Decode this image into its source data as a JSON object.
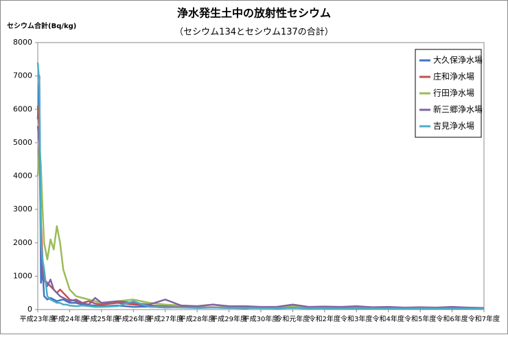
{
  "chart_data": {
    "type": "line",
    "title": "浄水発生土中の放射性セシウム",
    "subtitle": "（セシウム134とセシウム137の合計）",
    "y_label": "セシウム合計(Bq/kg)",
    "x": [
      0,
      0.05,
      0.1,
      0.15,
      0.2,
      0.3,
      0.4,
      0.5,
      0.6,
      0.7,
      0.8,
      0.9,
      1.0,
      1.2,
      1.4,
      1.6,
      1.8,
      2,
      2.5,
      3,
      3.5,
      4,
      4.5,
      5,
      5.5,
      6,
      6.5,
      7,
      7.5,
      8,
      8.5,
      9,
      9.5,
      10,
      10.5,
      11,
      11.5,
      12,
      12.5,
      13,
      13.5,
      14
    ],
    "xlim": [
      0,
      14
    ],
    "xticks": [
      {
        "value": 0,
        "label": "平成23年度"
      },
      {
        "value": 1,
        "label": "平成24年度"
      },
      {
        "value": 2,
        "label": "平成25年度"
      },
      {
        "value": 3,
        "label": "平成26年度"
      },
      {
        "value": 4,
        "label": "平成27年度"
      },
      {
        "value": 5,
        "label": "平成28年度"
      },
      {
        "value": 6,
        "label": "平成29年度"
      },
      {
        "value": 7,
        "label": "平成30年度"
      },
      {
        "value": 8,
        "label": "令和元年度"
      },
      {
        "value": 9,
        "label": "令和2年度"
      },
      {
        "value": 10,
        "label": "令和3年度"
      },
      {
        "value": 11,
        "label": "令和4年度"
      },
      {
        "value": 12,
        "label": "令和5年度"
      },
      {
        "value": 13,
        "label": "令和6年度"
      },
      {
        "value": 14,
        "label": "令和7年度"
      }
    ],
    "ylim": [
      0,
      8000
    ],
    "yticks": [
      0,
      1000,
      2000,
      3000,
      4000,
      5000,
      6000,
      7000,
      8000
    ],
    "legend": "top-right",
    "series": [
      {
        "name": "大久保浄水場",
        "color": "#4472c4",
        "values": [
          5700,
          7000,
          800,
          1200,
          400,
          300,
          350,
          300,
          250,
          280,
          300,
          250,
          200,
          200,
          150,
          130,
          120,
          100,
          120,
          80,
          90,
          60,
          70,
          50,
          60,
          50,
          40,
          50,
          40,
          50,
          40,
          40,
          35,
          40,
          35,
          40,
          30,
          35,
          30,
          35,
          30,
          30
        ]
      },
      {
        "name": "庄和浄水場",
        "color": "#c0504d",
        "values": [
          6100,
          5500,
          2600,
          1500,
          900,
          800,
          700,
          600,
          500,
          600,
          500,
          400,
          300,
          250,
          200,
          250,
          180,
          150,
          200,
          150,
          120,
          100,
          80,
          60,
          70,
          50,
          40,
          60,
          40,
          50,
          40,
          50,
          40,
          40,
          40,
          35,
          40,
          30,
          35,
          30,
          35,
          30
        ]
      },
      {
        "name": "行田浄水場",
        "color": "#9bbb59",
        "values": [
          4000,
          5000,
          4300,
          3000,
          2000,
          1500,
          2100,
          1800,
          2500,
          2000,
          1200,
          900,
          600,
          400,
          350,
          300,
          250,
          200,
          250,
          300,
          200,
          150,
          120,
          100,
          150,
          80,
          100,
          60,
          80,
          100,
          60,
          70,
          50,
          60,
          50,
          60,
          50,
          40,
          50,
          40,
          40,
          40
        ]
      },
      {
        "name": "新三郷浄水場",
        "color": "#8064a2",
        "values": [
          5500,
          5000,
          2000,
          1000,
          900,
          700,
          900,
          600,
          500,
          400,
          350,
          300,
          250,
          300,
          200,
          150,
          350,
          200,
          250,
          200,
          150,
          300,
          120,
          100,
          150,
          100,
          100,
          80,
          80,
          150,
          80,
          90,
          80,
          100,
          70,
          80,
          60,
          70,
          60,
          80,
          60,
          50
        ]
      },
      {
        "name": "吉見浄水場",
        "color": "#4bacc6",
        "values": [
          7400,
          6800,
          2000,
          1500,
          1200,
          400,
          300,
          250,
          200,
          200,
          150,
          150,
          120,
          100,
          120,
          100,
          80,
          80,
          100,
          250,
          80,
          70,
          60,
          50,
          60,
          50,
          50,
          40,
          40,
          50,
          40,
          40,
          30,
          40,
          35,
          30,
          30,
          35,
          30,
          30,
          30,
          30
        ]
      }
    ]
  }
}
